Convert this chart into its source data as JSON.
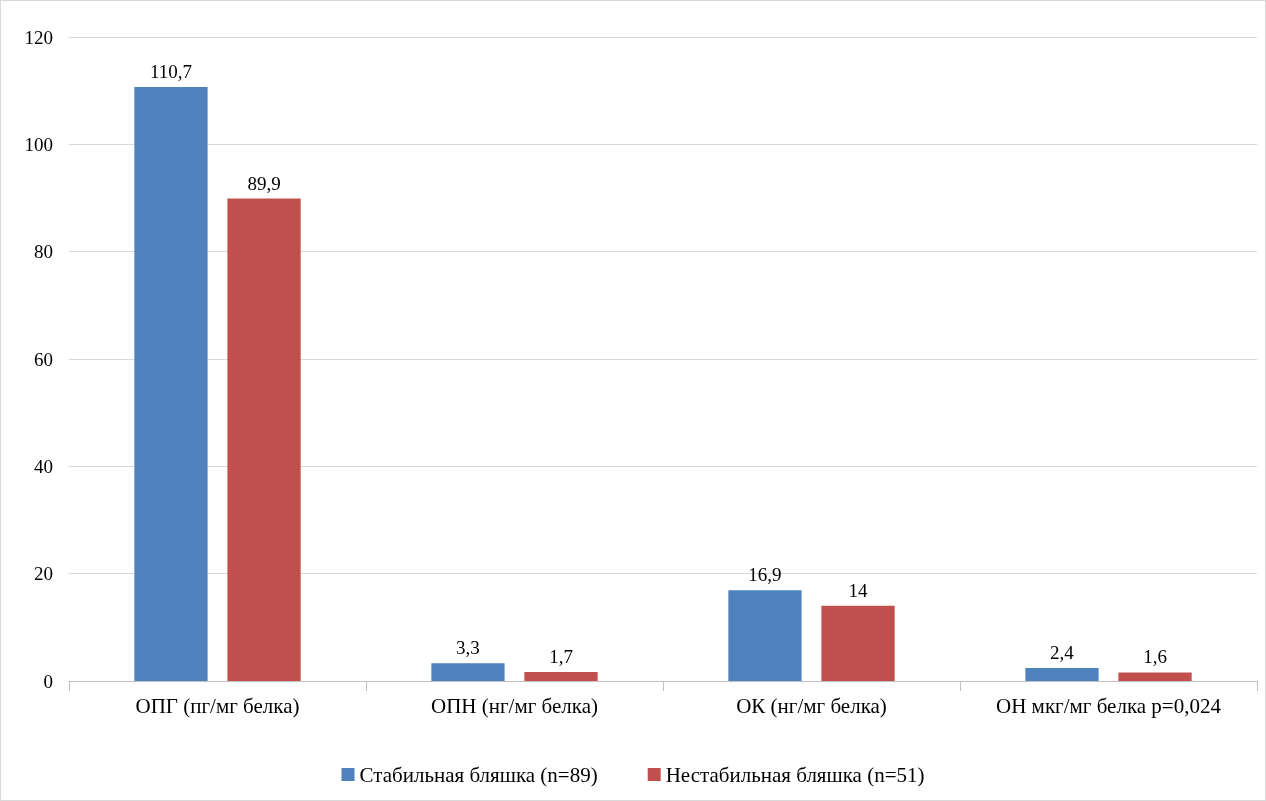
{
  "chart_data": {
    "type": "bar",
    "categories": [
      "ОПГ (пг/мг белка)",
      "ОПН (нг/мг белка)",
      "ОК (нг/мг белка)",
      "ОН мкг/мг белка p=0,024"
    ],
    "series": [
      {
        "name": "Стабильная бляшка (n=89)",
        "color": "#4f81bd",
        "values": [
          110.7,
          3.3,
          16.9,
          2.4
        ],
        "value_labels": [
          "110,7",
          "3,3",
          "16,9",
          "2,4"
        ]
      },
      {
        "name": "Нестабильная бляшка (n=51)",
        "color": "#c0504d",
        "values": [
          89.9,
          1.7,
          14,
          1.6
        ],
        "value_labels": [
          "89,9",
          "1,7",
          "14",
          "1,6"
        ]
      }
    ],
    "ylim": [
      0,
      120
    ],
    "yticks": [
      0,
      20,
      40,
      60,
      80,
      100,
      120
    ],
    "grid": "y",
    "legend": "bottom"
  }
}
